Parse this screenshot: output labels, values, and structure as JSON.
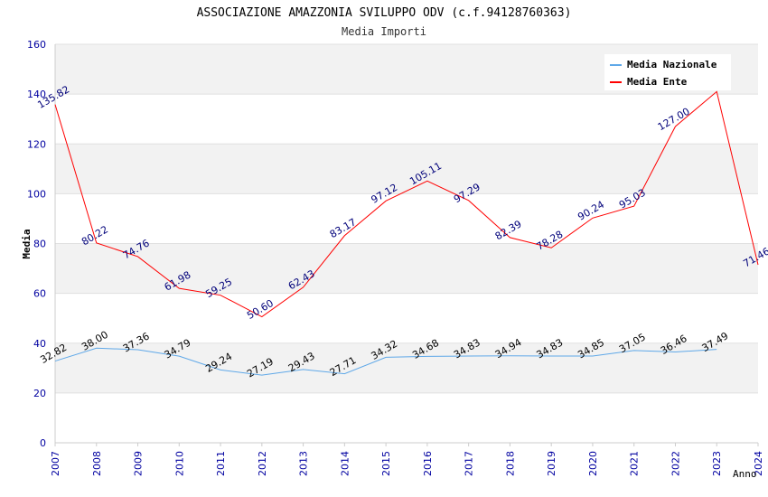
{
  "chart_data": {
    "type": "line",
    "title": "ASSOCIAZIONE AMAZZONIA SVILUPPO ODV (c.f.94128760363)",
    "subtitle": "Media Importi",
    "xlabel": "Anno",
    "ylabel": "Media",
    "ylim": [
      0,
      160
    ],
    "yticks": [
      "0",
      "20",
      "40",
      "60",
      "80",
      "100",
      "120",
      "140",
      "160"
    ],
    "categories": [
      "2007",
      "2008",
      "2009",
      "2010",
      "2011",
      "2012",
      "2013",
      "2014",
      "2015",
      "2016",
      "2017",
      "2018",
      "2019",
      "2020",
      "2021",
      "2022",
      "2023",
      "2024"
    ],
    "grid": true,
    "legend_position": "top-right",
    "series": [
      {
        "name": "Media Nazionale",
        "color": "#5fa8e8",
        "values": [
          32.82,
          38.0,
          37.36,
          34.79,
          29.24,
          27.19,
          29.43,
          27.71,
          34.32,
          34.68,
          34.83,
          34.94,
          34.83,
          34.85,
          37.05,
          36.46,
          37.49,
          null
        ],
        "labels": [
          "32.82",
          "38.00",
          "37.36",
          "34.79",
          "29.24",
          "27.19",
          "29.43",
          "27.71",
          "34.32",
          "34.68",
          "34.83",
          "34.94",
          "34.83",
          "34.85",
          "37.05",
          "36.46",
          "37.49",
          ""
        ]
      },
      {
        "name": "Media Ente",
        "color": "#ff0000",
        "values": [
          135.82,
          80.22,
          74.76,
          61.98,
          59.25,
          50.6,
          62.43,
          83.17,
          97.12,
          105.11,
          97.29,
          82.39,
          78.28,
          90.24,
          95.03,
          127.0,
          141.0,
          71.46
        ],
        "labels": [
          "135.82",
          "80.22",
          "74.76",
          "61.98",
          "59.25",
          "50.60",
          "62.43",
          "83.17",
          "97.12",
          "105.11",
          "97.29",
          "82.39",
          "78.28",
          "90.24",
          "95.03",
          "127.00",
          "",
          "71.46"
        ]
      }
    ]
  }
}
